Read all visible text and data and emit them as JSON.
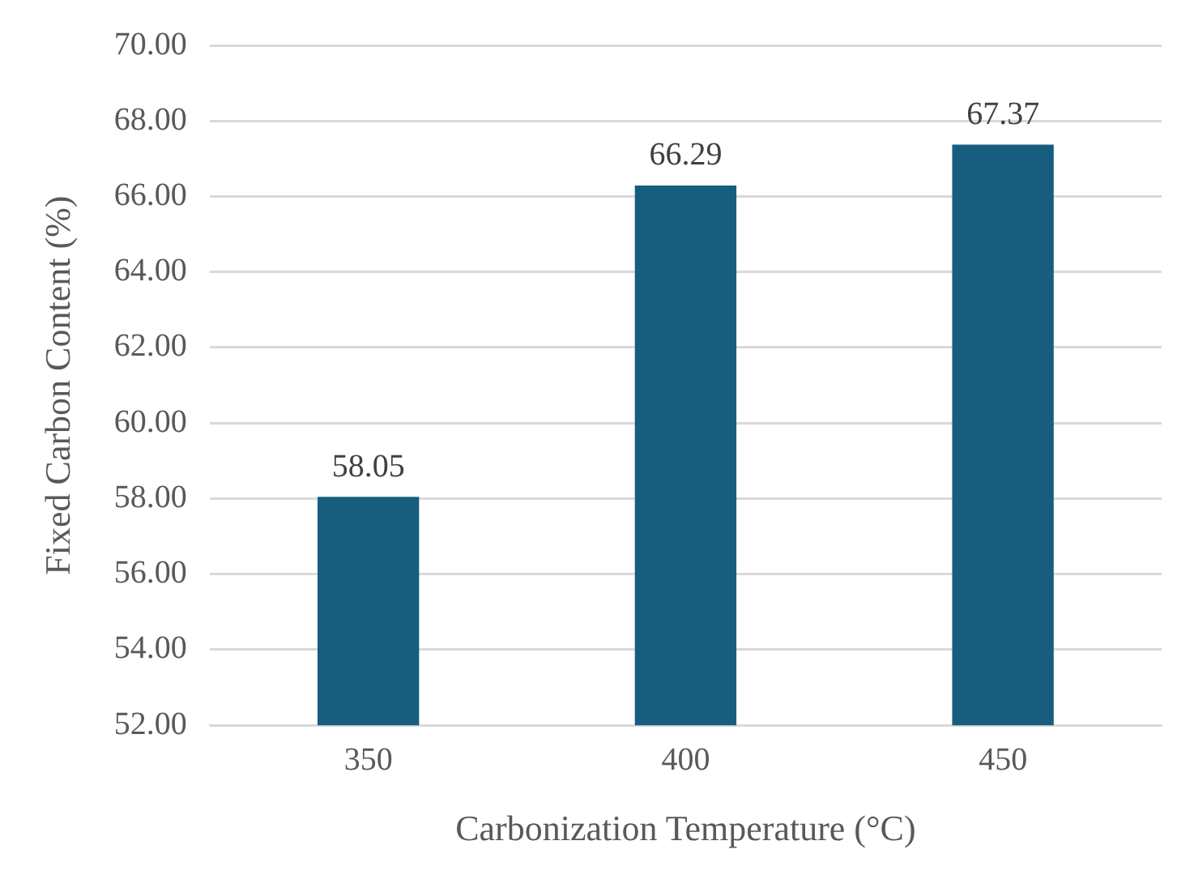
{
  "chart_data": {
    "type": "bar",
    "xlabel": "Carbonization Temperature (°C)",
    "ylabel": "Fixed Carbon Content (%)",
    "categories": [
      "350",
      "400",
      "450"
    ],
    "values": [
      58.05,
      66.29,
      67.37
    ],
    "color": "#175e7e",
    "ylim": [
      52,
      70
    ],
    "yticks": [
      {
        "value": 52,
        "label": "52.00"
      },
      {
        "value": 54,
        "label": "54.00"
      },
      {
        "value": 56,
        "label": "56.00"
      },
      {
        "value": 58,
        "label": "58.00"
      },
      {
        "value": 60,
        "label": "60.00"
      },
      {
        "value": 62,
        "label": "62.00"
      },
      {
        "value": 64,
        "label": "64.00"
      },
      {
        "value": 66,
        "label": "66.00"
      },
      {
        "value": 68,
        "label": "68.00"
      },
      {
        "value": 70,
        "label": "70.00"
      }
    ],
    "grid": "y",
    "data_labels": true
  }
}
